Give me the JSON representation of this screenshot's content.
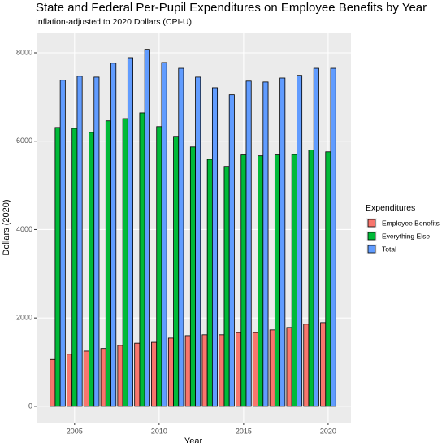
{
  "chart_data": {
    "type": "bar",
    "title": "State and Federal Per-Pupil Expenditures on Employee Benefits by Year",
    "subtitle": "Inflation-adjusted to 2020 Dollars (CPI-U)",
    "x_label": "Year",
    "y_label": "Dollars (2020)",
    "legend_title": "Expenditures",
    "legend_position": "right",
    "grid": true,
    "x": [
      2004,
      2005,
      2006,
      2007,
      2008,
      2009,
      2010,
      2011,
      2012,
      2013,
      2014,
      2015,
      2016,
      2017,
      2018,
      2019,
      2020
    ],
    "series": [
      {
        "name": "Employee Benefits",
        "color": "#f8766d",
        "values": [
          1060,
          1180,
          1250,
          1310,
          1380,
          1430,
          1450,
          1545,
          1600,
          1620,
          1620,
          1670,
          1670,
          1730,
          1785,
          1860,
          1895
        ]
      },
      {
        "name": "Everything Else",
        "color": "#00ba38",
        "values": [
          6310,
          6290,
          6200,
          6460,
          6510,
          6640,
          6330,
          6110,
          5870,
          5590,
          5430,
          5690,
          5670,
          5690,
          5700,
          5800,
          5760
        ]
      },
      {
        "name": "Total",
        "color": "#619cff",
        "values": [
          7380,
          7470,
          7450,
          7765,
          7890,
          8080,
          7780,
          7650,
          7450,
          7210,
          7050,
          7360,
          7340,
          7430,
          7490,
          7650,
          7650
        ]
      }
    ],
    "xlim": [
      2002.75,
      2021.35
    ],
    "xticks": [
      2005,
      2010,
      2015,
      2020
    ],
    "ylim": [
      -370,
      8460
    ],
    "yticks": [
      0,
      2000,
      4000,
      6000,
      8000
    ]
  }
}
